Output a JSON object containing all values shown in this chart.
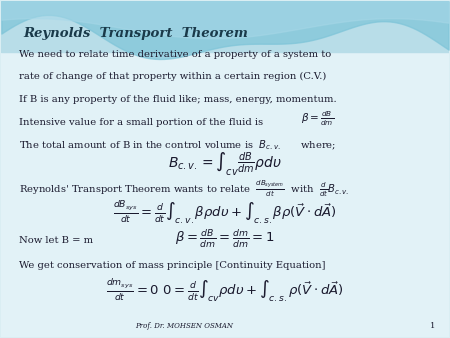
{
  "title": "Reynolds  Transport  Theorem",
  "bg_top_color": "#a8d8e8",
  "bg_main_color": "#e8f4f8",
  "text_color": "#1a1a2e",
  "footer_text": "Prof. Dr. MOHSEN OSMAN",
  "slide_number": "1",
  "lines": [
    "We need to relate time derivative of a property of a system to",
    "rate of change of that property within a certain region (C.V.)",
    "If B is any property of the fluid like; mass, energy, momentum.",
    "Intensive value for a small portion of the fluid is",
    "The total amount of B in the control volume is"
  ]
}
